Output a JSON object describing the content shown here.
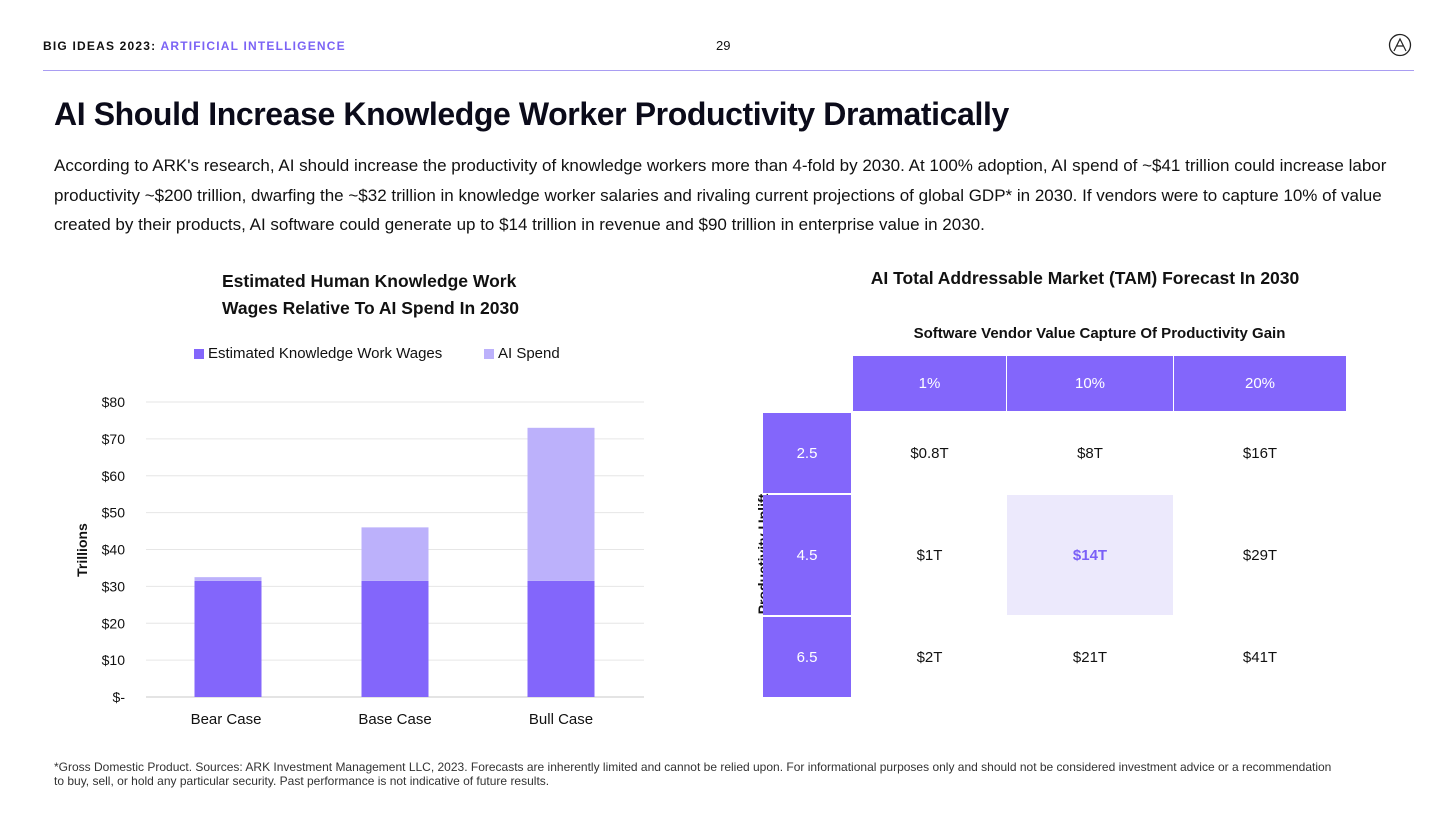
{
  "header": {
    "series": "BIG IDEAS 2023:",
    "topic": "ARTIFICIAL INTELLIGENCE",
    "page_number": "29",
    "logo_icon": "ark-logo-icon"
  },
  "title": "AI Should Increase Knowledge Worker Productivity Dramatically",
  "description": "According to ARK's research, AI should increase the productivity of knowledge workers more than 4-fold by 2030. At 100% adoption, AI spend of ~$41 trillion could increase labor productivity ~$200 trillion, dwarfing the ~$32 trillion in knowledge worker salaries and rivaling current projections of global GDP* in 2030. If vendors were to capture 10% of value created by their products, AI software could generate up to $14 trillion in revenue and $90 trillion in enterprise value in 2030.",
  "footnote": "*Gross Domestic Product. Sources: ARK Investment Management LLC, 2023. Forecasts are inherently limited and cannot be relied upon. For informational purposes only and should not be considered investment advice or a recommendation to buy, sell, or hold any particular security. Past performance is not indicative of future results.",
  "colors": {
    "accent": "#7b63f5",
    "wages": "#8366fb",
    "ai_spend": "#bcb1fb",
    "highlight_bg": "#ece9fc"
  },
  "chart_data": [
    {
      "type": "bar",
      "stacked": true,
      "title_line1": "Estimated Human Knowledge Work",
      "title_line2": "Wages Relative To AI Spend In 2030",
      "ylabel": "Trillions",
      "categories": [
        "Bear Case",
        "Base Case",
        "Bull Case"
      ],
      "series": [
        {
          "name": "Estimated Knowledge Work Wages",
          "values": [
            31.5,
            31.5,
            31.5
          ]
        },
        {
          "name": "AI Spend",
          "values": [
            1,
            14.5,
            41.5
          ]
        }
      ],
      "ylim": [
        0,
        80
      ],
      "yticks": [
        "$-",
        "$10",
        "$20",
        "$30",
        "$40",
        "$50",
        "$60",
        "$70",
        "$80"
      ],
      "grid": true,
      "legend": "top"
    },
    {
      "type": "table",
      "title": "AI Total Addressable Market (TAM) Forecast In 2030",
      "col_title": "Software Vendor Value Capture Of Productivity Gain",
      "row_title": "Productivity Uplift",
      "columns": [
        "1%",
        "10%",
        "20%"
      ],
      "rows": [
        {
          "label": "2.5",
          "values": [
            "$0.8T",
            "$8T",
            "$16T"
          ]
        },
        {
          "label": "4.5",
          "values": [
            "$1T",
            "$14T",
            "$29T"
          ]
        },
        {
          "label": "6.5",
          "values": [
            "$2T",
            "$21T",
            "$41T"
          ]
        }
      ],
      "highlight": "$14T"
    }
  ]
}
